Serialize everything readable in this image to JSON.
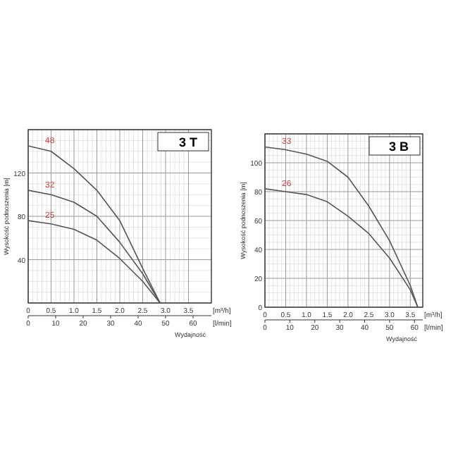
{
  "chart_data": [
    {
      "type": "line",
      "title": "3 T",
      "xlabel": "Wydajność",
      "ylabel": "Wysokość podnoszenia [m]",
      "annotations": [
        "[m³/h]",
        "[l/min]"
      ],
      "xlim": [
        0,
        4
      ],
      "xticks": [
        0,
        {
          "value": 0.5,
          "label": "0.5"
        },
        {
          "value": 1,
          "label": "1.0"
        },
        {
          "value": 1.5,
          "label": "1.5"
        },
        {
          "value": 2,
          "label": "2.0"
        },
        {
          "value": 2.5,
          "label": "2.5"
        },
        {
          "value": 3,
          "label": "3.0"
        },
        {
          "value": 3.5,
          "label": "3.5"
        }
      ],
      "x2lim": [
        0,
        66.67
      ],
      "x2ticks": [
        0,
        10,
        20,
        30,
        40,
        50,
        60
      ],
      "ylim": [
        0,
        160
      ],
      "yticks": [
        {
          "value": 0,
          "label": null
        },
        40,
        80,
        120,
        {
          "value": 160,
          "label": null
        }
      ],
      "grid": true,
      "legend": false,
      "marker": "none",
      "x": [
        0,
        0.5,
        1,
        1.5,
        2,
        2.5,
        2.88
      ],
      "series": [
        {
          "name": "48",
          "color": "#555555",
          "values": [
            145,
            140,
            124,
            104,
            76,
            32,
            0
          ]
        },
        {
          "name": "32",
          "color": "#555555",
          "values": [
            104,
            100,
            93,
            80,
            56,
            27,
            0
          ]
        },
        {
          "name": "25",
          "color": "#555555",
          "values": [
            76,
            73,
            68,
            58,
            41,
            20,
            0
          ]
        }
      ]
    },
    {
      "type": "line",
      "title": "3 B",
      "xlabel": "Wydajność",
      "ylabel": "Wysokość podnoszenia [m]",
      "annotations": [
        "[m³/h]",
        "[l/min]"
      ],
      "xlim": [
        0,
        3.8
      ],
      "xticks": [
        0,
        {
          "value": 0.5,
          "label": "0.5"
        },
        {
          "value": 1,
          "label": "1.0"
        },
        {
          "value": 1.5,
          "label": "1.5"
        },
        {
          "value": 2,
          "label": "2.0"
        },
        {
          "value": 2.5,
          "label": "2.5"
        },
        {
          "value": 3,
          "label": "3.0"
        },
        {
          "value": 3.5,
          "label": "3.5"
        }
      ],
      "x2lim": [
        0,
        63.33
      ],
      "x2ticks": [
        0,
        10,
        20,
        30,
        40,
        50,
        60
      ],
      "ylim": [
        0,
        120
      ],
      "yticks": [
        0,
        20,
        40,
        60,
        80,
        100,
        {
          "value": 120,
          "label": null
        }
      ],
      "grid": true,
      "legend": false,
      "marker": "none",
      "x": [
        0,
        0.5,
        1,
        1.5,
        2,
        2.5,
        3,
        3.5,
        3.68
      ],
      "series": [
        {
          "name": "33",
          "color": "#555555",
          "values": [
            111,
            109,
            106,
            101,
            90,
            70,
            46,
            15,
            0
          ]
        },
        {
          "name": "26",
          "color": "#555555",
          "values": [
            82,
            80,
            78,
            73,
            63,
            51,
            34,
            12,
            0
          ]
        }
      ]
    }
  ]
}
